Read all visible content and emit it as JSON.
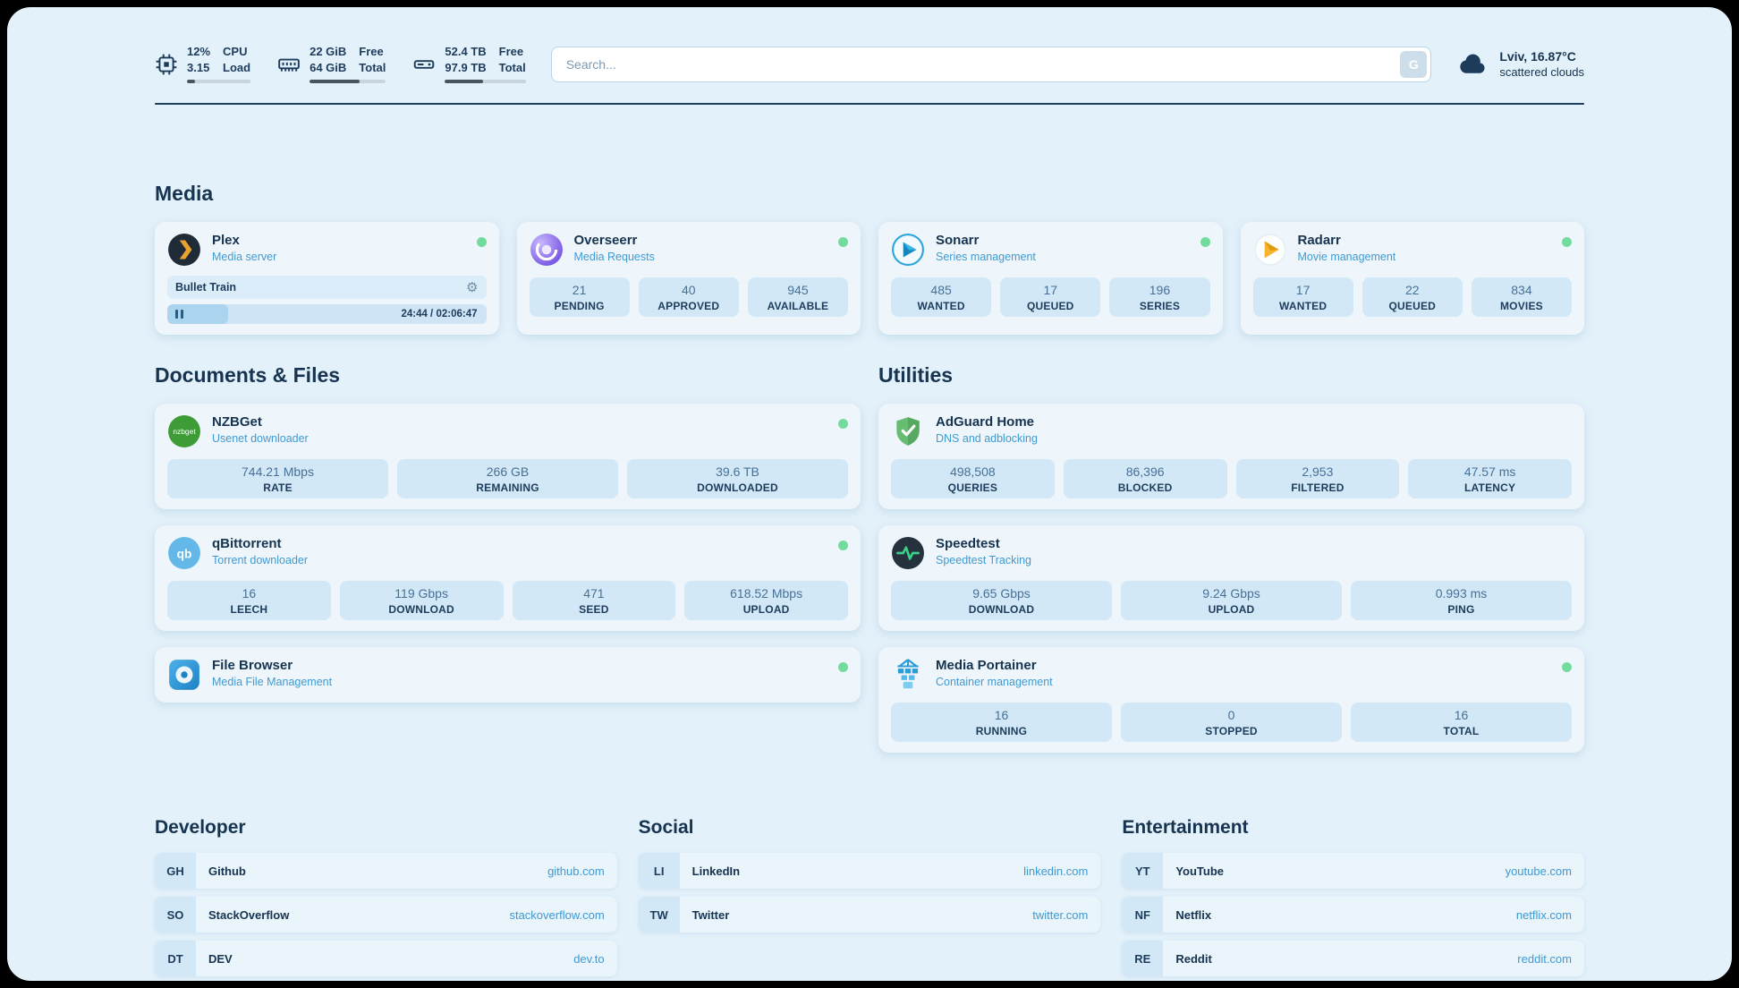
{
  "colors": {
    "page_bg": "#e3f1fa",
    "card_bg": "#eef6fc",
    "stat_bg": "#d2e8f7",
    "text_dark": "#16334f",
    "accent_blue": "#3f9ad2",
    "status_online_green": "#72db9e"
  },
  "icons": {
    "gear": "⚙",
    "nzbget_label": "nzbget",
    "qbittorrent_label": "qb"
  },
  "topbar": {
    "cpu": {
      "value_top": "12%",
      "value_bottom": "3.15",
      "label_top": "CPU",
      "label_bottom": "Load",
      "bar_percent": 12
    },
    "ram": {
      "value_top": "22 GiB",
      "value_bottom": "64 GiB",
      "label_top": "Free",
      "label_bottom": "Total",
      "bar_percent": 66
    },
    "disk": {
      "value_top": "52.4 TB",
      "value_bottom": "97.9 TB",
      "label_top": "Free",
      "label_bottom": "Total",
      "bar_percent": 47
    },
    "search": {
      "placeholder": "Search...",
      "button_label": "G"
    },
    "weather": {
      "location": "Lviv, 16.87°C",
      "condition": "scattered clouds"
    }
  },
  "media": {
    "title": "Media",
    "plex": {
      "name": "Plex",
      "subtitle": "Media server",
      "now_playing": {
        "title": "Bullet Train",
        "time_display": "24:44 / 02:06:47",
        "progress_percent": 19
      }
    },
    "overseerr": {
      "name": "Overseerr",
      "subtitle": "Media Requests",
      "stats": [
        {
          "value": "21",
          "label": "PENDING"
        },
        {
          "value": "40",
          "label": "APPROVED"
        },
        {
          "value": "945",
          "label": "AVAILABLE"
        }
      ]
    },
    "sonarr": {
      "name": "Sonarr",
      "subtitle": "Series management",
      "stats": [
        {
          "value": "485",
          "label": "WANTED"
        },
        {
          "value": "17",
          "label": "QUEUED"
        },
        {
          "value": "196",
          "label": "SERIES"
        }
      ]
    },
    "radarr": {
      "name": "Radarr",
      "subtitle": "Movie management",
      "stats": [
        {
          "value": "17",
          "label": "WANTED"
        },
        {
          "value": "22",
          "label": "QUEUED"
        },
        {
          "value": "834",
          "label": "MOVIES"
        }
      ]
    }
  },
  "documents": {
    "title": "Documents & Files",
    "nzbget": {
      "name": "NZBGet",
      "subtitle": "Usenet downloader",
      "stats": [
        {
          "value": "744.21 Mbps",
          "label": "RATE"
        },
        {
          "value": "266 GB",
          "label": "REMAINING"
        },
        {
          "value": "39.6 TB",
          "label": "DOWNLOADED"
        }
      ]
    },
    "qbittorrent": {
      "name": "qBittorrent",
      "subtitle": "Torrent downloader",
      "stats": [
        {
          "value": "16",
          "label": "LEECH"
        },
        {
          "value": "119 Gbps",
          "label": "DOWNLOAD"
        },
        {
          "value": "471",
          "label": "SEED"
        },
        {
          "value": "618.52 Mbps",
          "label": "UPLOAD"
        }
      ]
    },
    "filebrowser": {
      "name": "File Browser",
      "subtitle": "Media File Management"
    }
  },
  "utilities": {
    "title": "Utilities",
    "adguard": {
      "name": "AdGuard Home",
      "subtitle": "DNS and adblocking",
      "stats": [
        {
          "value": "498,508",
          "label": "QUERIES"
        },
        {
          "value": "86,396",
          "label": "BLOCKED"
        },
        {
          "value": "2,953",
          "label": "FILTERED"
        },
        {
          "value": "47.57 ms",
          "label": "LATENCY"
        }
      ]
    },
    "speedtest": {
      "name": "Speedtest",
      "subtitle": "Speedtest Tracking",
      "stats": [
        {
          "value": "9.65 Gbps",
          "label": "DOWNLOAD"
        },
        {
          "value": "9.24 Gbps",
          "label": "UPLOAD"
        },
        {
          "value": "0.993 ms",
          "label": "PING"
        }
      ]
    },
    "portainer": {
      "name": "Media Portainer",
      "subtitle": "Container management",
      "stats": [
        {
          "value": "16",
          "label": "RUNNING"
        },
        {
          "value": "0",
          "label": "STOPPED"
        },
        {
          "value": "16",
          "label": "TOTAL"
        }
      ]
    }
  },
  "bookmarks": {
    "developer": {
      "title": "Developer",
      "items": [
        {
          "abbr": "GH",
          "name": "Github",
          "url": "github.com"
        },
        {
          "abbr": "SO",
          "name": "StackOverflow",
          "url": "stackoverflow.com"
        },
        {
          "abbr": "DT",
          "name": "DEV",
          "url": "dev.to"
        }
      ]
    },
    "social": {
      "title": "Social",
      "items": [
        {
          "abbr": "LI",
          "name": "LinkedIn",
          "url": "linkedin.com"
        },
        {
          "abbr": "TW",
          "name": "Twitter",
          "url": "twitter.com"
        }
      ]
    },
    "entertainment": {
      "title": "Entertainment",
      "items": [
        {
          "abbr": "YT",
          "name": "YouTube",
          "url": "youtube.com"
        },
        {
          "abbr": "NF",
          "name": "Netflix",
          "url": "netflix.com"
        },
        {
          "abbr": "RE",
          "name": "Reddit",
          "url": "reddit.com"
        }
      ]
    }
  }
}
